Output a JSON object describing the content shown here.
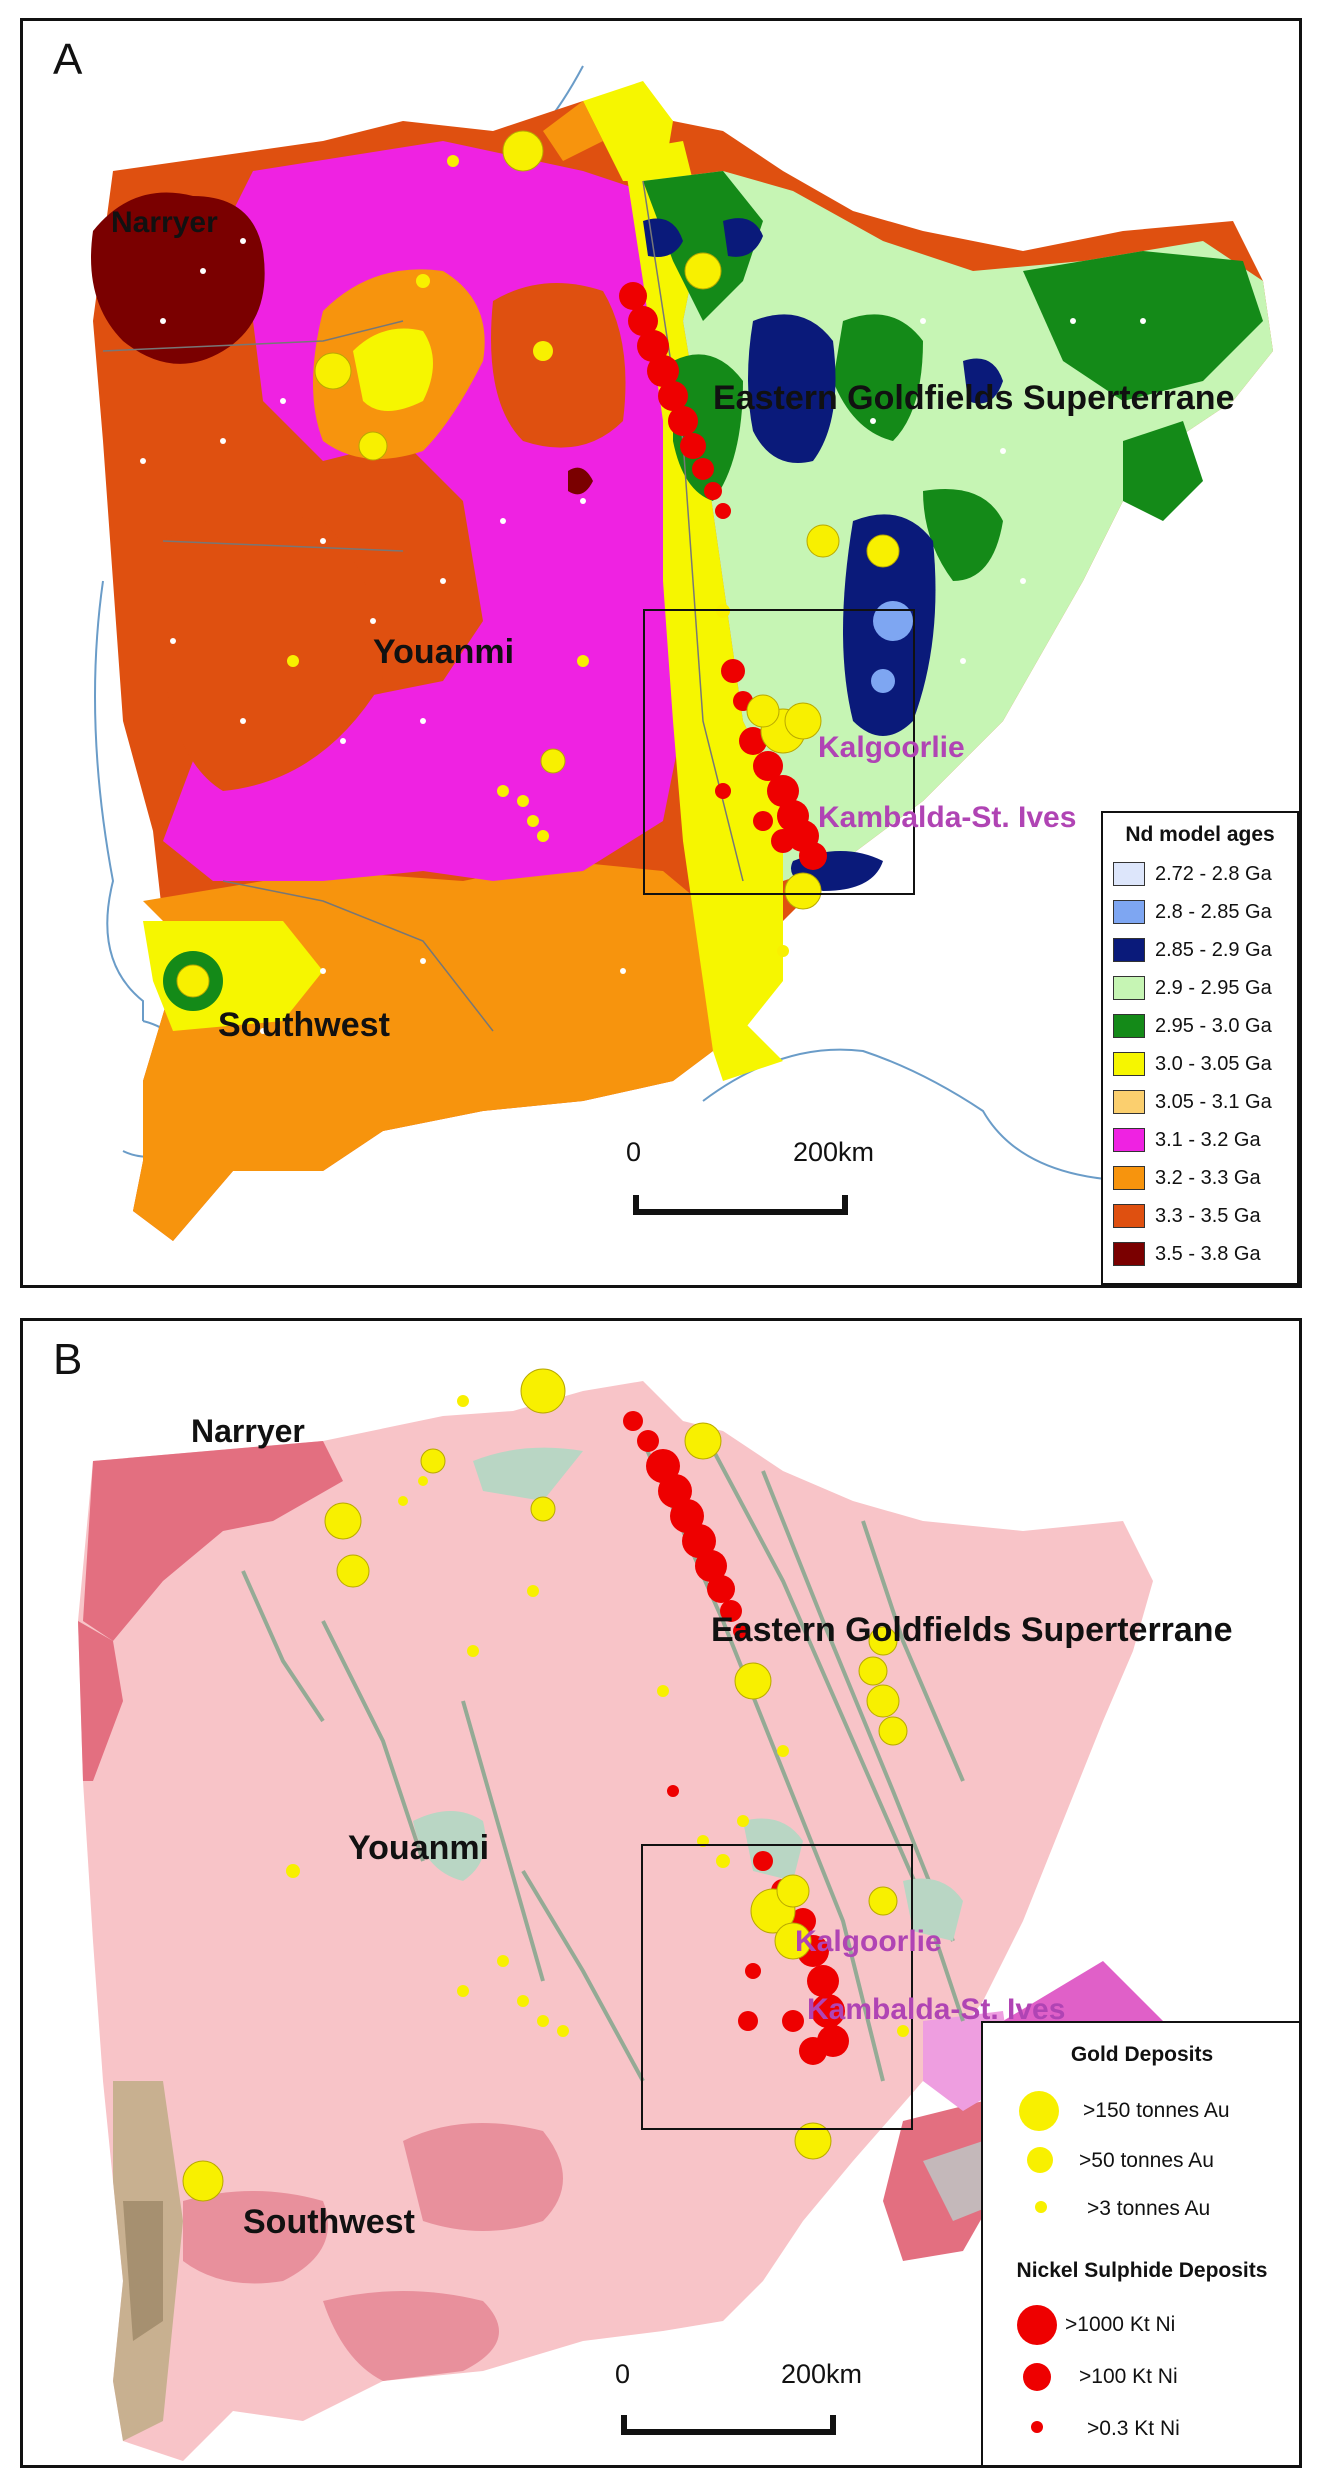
{
  "panel_a": {
    "label": "A",
    "legend": {
      "title": "Nd model ages",
      "items": [
        {
          "label": "2.72 - 2.8 Ga",
          "color": "#dde6fb"
        },
        {
          "label": "2.8 - 2.85 Ga",
          "color": "#7ea6f2"
        },
        {
          "label": "2.85 - 2.9 Ga",
          "color": "#0a1a7a"
        },
        {
          "label": "2.9 - 2.95 Ga",
          "color": "#c6f5b4"
        },
        {
          "label": "2.95 - 3.0 Ga",
          "color": "#148a18"
        },
        {
          "label": "3.0 - 3.05 Ga",
          "color": "#f6f600"
        },
        {
          "label": "3.05 - 3.1 Ga",
          "color": "#fbcf6e"
        },
        {
          "label": "3.1 - 3.2 Ga",
          "color": "#ef22e2"
        },
        {
          "label": "3.2 - 3.3 Ga",
          "color": "#f7940d"
        },
        {
          "label": "3.3 - 3.5 Ga",
          "color": "#df5010"
        },
        {
          "label": "3.5 - 3.8 Ga",
          "color": "#7a0000"
        }
      ]
    },
    "regions": {
      "narryer": "Narryer",
      "youanmi": "Youanmi",
      "southwest": "Southwest",
      "eastern": "Eastern Goldfields Superterrane"
    },
    "cities": {
      "kalgoorlie": "Kalgoorlie",
      "kambalda": "Kambalda-St. Ives"
    },
    "scale": {
      "start": "0",
      "end": "200km"
    }
  },
  "panel_b": {
    "label": "B",
    "legend": {
      "gold_title": "Gold Deposits",
      "gold_items": [
        {
          "label": ">150 tonnes Au"
        },
        {
          "label": ">50 tonnes Au"
        },
        {
          "label": ">3 tonnes Au"
        }
      ],
      "nickel_title": "Nickel Sulphide Deposits",
      "nickel_items": [
        {
          "label": ">1000 Kt Ni"
        },
        {
          "label": ">100 Kt Ni"
        },
        {
          "label": ">0.3 Kt Ni"
        }
      ],
      "gold_color": "#f8f000",
      "nickel_color": "#ee0000"
    },
    "regions": {
      "narryer": "Narryer",
      "youanmi": "Youanmi",
      "southwest": "Southwest",
      "eastern": "Eastern Goldfields Superterrane"
    },
    "cities": {
      "kalgoorlie": "Kalgoorlie",
      "kambalda": "Kambalda-St. Ives"
    },
    "scale": {
      "start": "0",
      "end": "200km"
    }
  }
}
